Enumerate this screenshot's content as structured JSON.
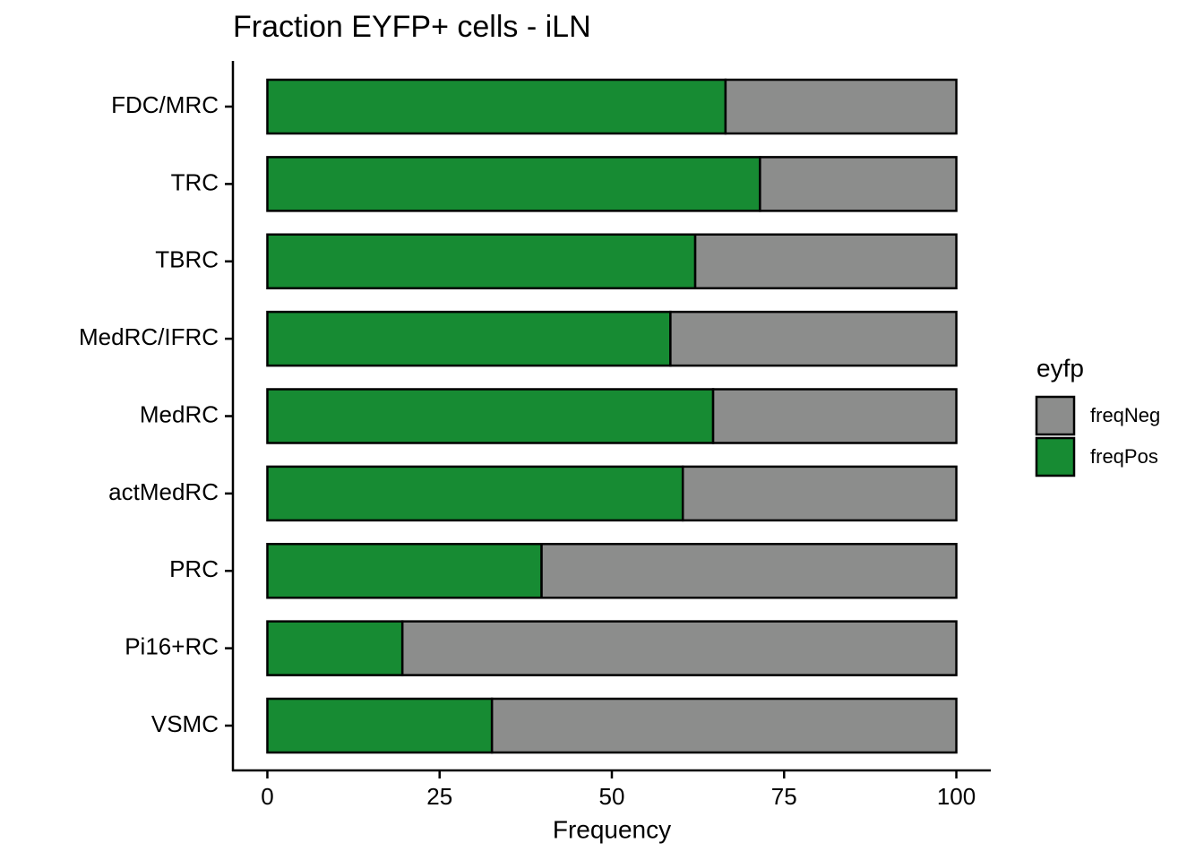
{
  "chart_data": {
    "type": "stacked-barh",
    "title": "Fraction EYFP+ cells - iLN",
    "xlabel": "Frequency",
    "categories": [
      "FDC/MRC",
      "TRC",
      "TBRC",
      "MedRC/IFRC",
      "MedRC",
      "actMedRC",
      "PRC",
      "Pi16+RC",
      "VSMC"
    ],
    "series": [
      {
        "name": "freqNeg",
        "color": "#8c8d8c",
        "values": [
          33.5,
          28.5,
          37.9,
          41.5,
          35.3,
          39.7,
          60.2,
          80.4,
          67.4
        ]
      },
      {
        "name": "freqPos",
        "color": "#178b33",
        "values": [
          66.5,
          71.5,
          62.1,
          58.5,
          64.7,
          60.3,
          39.8,
          19.6,
          32.6
        ]
      }
    ],
    "legend_title": "eyfp",
    "xlim": [
      -5,
      105
    ],
    "xticks": [
      0,
      25,
      50,
      75,
      100
    ]
  }
}
